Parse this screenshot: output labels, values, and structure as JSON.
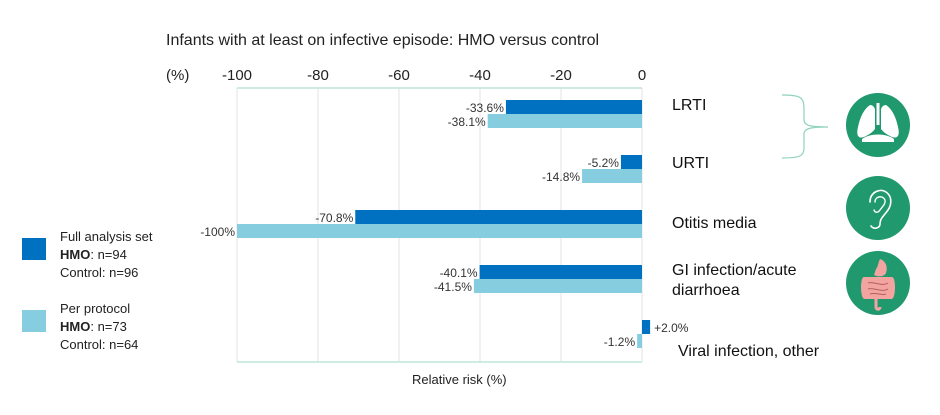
{
  "chart_data": {
    "type": "bar",
    "orientation": "horizontal",
    "title": "Infants with at least on infective episode: HMO versus control",
    "axis_unit_label": "(%)",
    "xlabel": "Relative risk (%)",
    "ylabel": "",
    "xlim": [
      -100,
      0
    ],
    "xticks": [
      -100,
      -80,
      -60,
      -40,
      -20,
      0
    ],
    "xtick_labels": [
      "-100",
      "-80",
      "-60",
      "-40",
      "-20",
      "0"
    ],
    "grid": "vertical",
    "categories": [
      "LRTI",
      "URTI",
      "Otitis media",
      "GI infection/acute diarrhoea",
      "Viral infection, other"
    ],
    "category_label_lines": [
      [
        "LRTI"
      ],
      [
        "URTI"
      ],
      [
        "Otitis media"
      ],
      [
        "GI infection/acute",
        "diarrhoea"
      ],
      [
        "Viral infection, other"
      ]
    ],
    "series": [
      {
        "name": "Full analysis set",
        "color": "#0070c0",
        "values": [
          -33.6,
          -5.2,
          -70.8,
          -40.1,
          2.0
        ],
        "labels": [
          "-33.6%",
          "-5.2%",
          "-70.8%",
          "-40.1%",
          "+2.0%"
        ]
      },
      {
        "name": "Per protocol",
        "color": "#87cde0",
        "values": [
          -38.1,
          -14.8,
          -100,
          -41.5,
          -1.2
        ],
        "labels": [
          "-38.1%",
          "-14.8%",
          "-100%",
          "-41.5%",
          "-1.2%"
        ]
      }
    ],
    "legend_position": "left"
  },
  "legend": [
    {
      "name": "Full analysis set",
      "color": "#0070c0",
      "hmo_label": "HMO",
      "hmo_n": ": n=94",
      "control": "Control: n=96"
    },
    {
      "name": "Per protocol",
      "color": "#87cde0",
      "hmo_label": "HMO",
      "hmo_n": ": n=73",
      "control": "Control: n=64"
    }
  ],
  "icons": [
    {
      "name": "lungs-icon",
      "applies_to": [
        "LRTI",
        "URTI"
      ]
    },
    {
      "name": "ear-icon",
      "applies_to": [
        "Otitis media"
      ]
    },
    {
      "name": "digestive-tract-icon",
      "applies_to": [
        "GI infection/acute diarrhoea"
      ]
    }
  ],
  "colors": {
    "icon_bg": "#21996f",
    "bracket": "#8fd3bc",
    "gridline": "#e3e3e3",
    "axis_line": "#bfe6da"
  }
}
